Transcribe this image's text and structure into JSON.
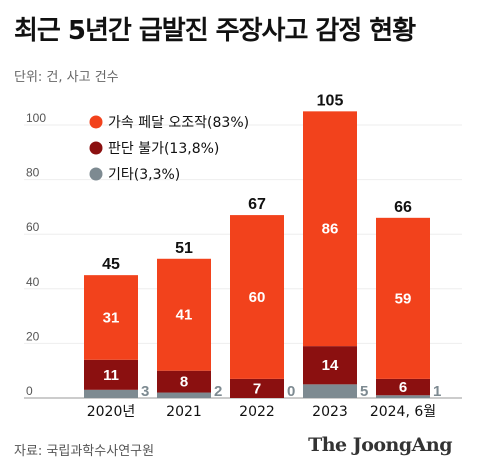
{
  "header": {
    "title": "최근 5년간 급발진 주장사고 감정 현황",
    "unit": "단위: 건, 사고 건수"
  },
  "footer": {
    "source": "자료: 국립과학수사연구원",
    "logo": "The JoongAng"
  },
  "colors": {
    "speed": "#f2421c",
    "undetermined": "#8b1010",
    "other": "#7d8a91"
  },
  "chart_data": {
    "type": "bar",
    "stacked": true,
    "categories": [
      "2020년",
      "2021",
      "2022",
      "2023",
      "2024, 6월"
    ],
    "series": [
      {
        "name": "기타(3,3%)",
        "key": "other",
        "values": [
          3,
          2,
          0,
          5,
          1
        ]
      },
      {
        "name": "판단 불가(13,8%)",
        "key": "undetermined",
        "values": [
          11,
          8,
          7,
          14,
          6
        ]
      },
      {
        "name": "가속 페달 오조작(83%)",
        "key": "speed",
        "values": [
          31,
          41,
          60,
          86,
          59
        ]
      }
    ],
    "totals": [
      45,
      51,
      67,
      105,
      66
    ],
    "yticks": [
      0,
      20,
      40,
      60,
      80,
      100
    ],
    "ylim": [
      0,
      110
    ],
    "legend_position": "top-left"
  }
}
